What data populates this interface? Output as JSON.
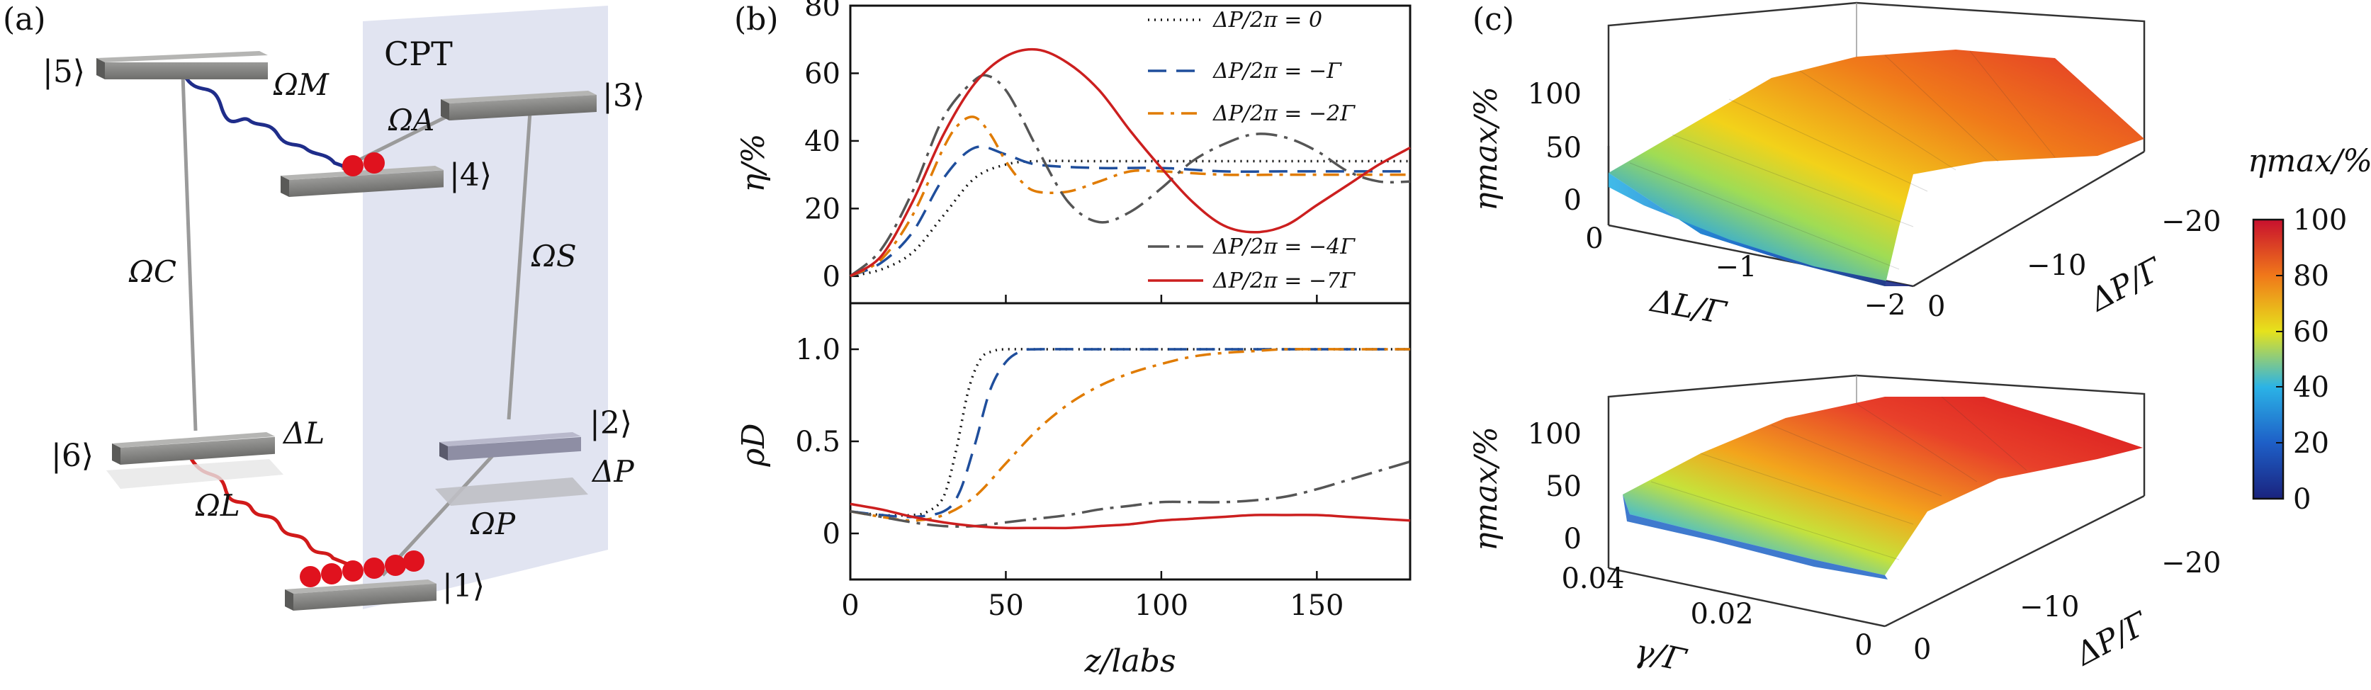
{
  "panels": {
    "a": {
      "label": "(a)",
      "cpt_label": "CPT",
      "levels": [
        "|5⟩",
        "|3⟩",
        "|4⟩",
        "|6⟩",
        "|2⟩",
        "|1⟩"
      ],
      "couplings": {
        "M": "ΩM",
        "A": "ΩA",
        "C": "ΩC",
        "S": "ΩS",
        "L": "ΩL",
        "P": "ΩP",
        "DL": "ΔL",
        "DP": "ΔP"
      },
      "colors": {
        "wave_M": "#1f2d8a",
        "wave_L": "#d11a1a",
        "atoms": "#e0121e",
        "cpt_plane": "#dcdfee"
      }
    },
    "b": {
      "label": "(b)",
      "top_ylabel": "η/%",
      "bottom_ylabel": "ρD",
      "xlabel": "z/labs"
    },
    "c": {
      "label": "(c)",
      "top_zlabel": "ηmax/%",
      "top_xlabel": "ΔL/Γ",
      "top_ylabel": "ΔP/Γ",
      "top_xticks": [
        "0",
        "−1",
        "−2"
      ],
      "top_yticks": [
        "0",
        "−10",
        "−20"
      ],
      "top_zticks": [
        "0",
        "50",
        "100"
      ],
      "bottom_zlabel": "ηmax/%",
      "bottom_xlabel": "γ/Γ",
      "bottom_ylabel": "ΔP/Γ",
      "bottom_xticks": [
        "0.04",
        "0.02",
        "0"
      ],
      "bottom_yticks": [
        "0",
        "−10",
        "−20"
      ],
      "bottom_zticks": [
        "0",
        "50",
        "100"
      ],
      "colorbar_title": "ηmax/%",
      "colorbar_ticks": [
        "100",
        "80",
        "60",
        "40",
        "20",
        "0"
      ]
    }
  },
  "chart_data": [
    {
      "type": "line",
      "panel": "b-top",
      "ylabel": "η/%",
      "xlim": [
        0,
        180
      ],
      "ylim": [
        -8,
        80
      ],
      "yticks": [
        0,
        20,
        40,
        60,
        80
      ],
      "legend_placement": "top-right and bottom-right",
      "series": [
        {
          "name": "ΔP/2π = 0",
          "color": "#111111",
          "dash": "2,7",
          "x": [
            0,
            10,
            20,
            30,
            40,
            50,
            60,
            80,
            100,
            120,
            140,
            160,
            180
          ],
          "y": [
            0,
            2,
            7,
            18,
            29,
            33,
            34,
            34,
            34,
            34,
            34,
            34,
            34
          ]
        },
        {
          "name": "ΔP/2π = −Γ",
          "color": "#1f4e9c",
          "dash": "26,14",
          "x": [
            0,
            10,
            20,
            30,
            40,
            50,
            60,
            80,
            100,
            120,
            140,
            160,
            180
          ],
          "y": [
            0,
            4,
            13,
            29,
            38,
            36,
            33,
            32,
            32,
            31,
            31,
            31,
            31
          ]
        },
        {
          "name": "ΔP/2π = −2Γ",
          "color": "#e07b00",
          "dash": "22,10,5,10",
          "x": [
            0,
            10,
            20,
            30,
            35,
            40,
            45,
            50,
            55,
            60,
            70,
            80,
            90,
            100,
            120,
            140,
            160,
            180
          ],
          "y": [
            0,
            5,
            18,
            38,
            45,
            47,
            42,
            34,
            28,
            25,
            25,
            28,
            31,
            31,
            30,
            30,
            30,
            30
          ]
        },
        {
          "name": "ΔP/2π = −4Γ",
          "color": "#555555",
          "dash": "30,10,5,10",
          "x": [
            0,
            10,
            20,
            30,
            40,
            45,
            50,
            55,
            60,
            70,
            80,
            90,
            100,
            110,
            120,
            130,
            140,
            150,
            160,
            170,
            180
          ],
          "y": [
            0,
            8,
            25,
            47,
            58,
            59,
            55,
            47,
            38,
            22,
            16,
            19,
            26,
            34,
            39,
            42,
            41,
            37,
            31,
            28,
            28
          ]
        },
        {
          "name": "ΔP/2π = −7Γ",
          "color": "#cc1f1f",
          "dash": "",
          "x": [
            0,
            10,
            20,
            30,
            40,
            50,
            60,
            70,
            80,
            90,
            100,
            110,
            120,
            130,
            140,
            150,
            160,
            170,
            180
          ],
          "y": [
            0,
            6,
            22,
            42,
            57,
            65,
            67,
            63,
            55,
            43,
            32,
            22,
            15,
            13,
            15,
            21,
            27,
            33,
            38
          ]
        }
      ]
    },
    {
      "type": "line",
      "panel": "b-bottom",
      "ylabel": "ρD",
      "xlabel": "z/labs",
      "xlim": [
        0,
        180
      ],
      "ylim": [
        -0.25,
        1.25
      ],
      "xticks": [
        0,
        50,
        100,
        150
      ],
      "yticks": [
        0,
        0.5,
        1.0
      ],
      "ytick_labels": [
        "0",
        "0.5",
        "1.0"
      ],
      "series": [
        {
          "name": "ΔP/2π = 0",
          "color": "#111111",
          "dash": "2,7",
          "x": [
            0,
            10,
            20,
            25,
            30,
            34,
            38,
            42,
            46,
            50,
            60,
            80,
            120,
            180
          ],
          "y": [
            0.12,
            0.1,
            0.1,
            0.12,
            0.2,
            0.45,
            0.78,
            0.95,
            0.99,
            1,
            1,
            1,
            1,
            1
          ]
        },
        {
          "name": "ΔP/2π = −Γ",
          "color": "#1f4e9c",
          "dash": "26,14",
          "x": [
            0,
            10,
            20,
            30,
            35,
            40,
            45,
            50,
            55,
            60,
            80,
            120,
            180
          ],
          "y": [
            0.12,
            0.1,
            0.09,
            0.12,
            0.22,
            0.48,
            0.78,
            0.93,
            0.99,
            1,
            1,
            1,
            1
          ]
        },
        {
          "name": "ΔP/2π = −2Γ",
          "color": "#e07b00",
          "dash": "22,10,5,10",
          "x": [
            0,
            10,
            20,
            30,
            40,
            50,
            60,
            70,
            80,
            90,
            100,
            110,
            120,
            130,
            140,
            160,
            180
          ],
          "y": [
            0.12,
            0.09,
            0.07,
            0.1,
            0.2,
            0.38,
            0.56,
            0.7,
            0.8,
            0.87,
            0.92,
            0.96,
            0.98,
            0.99,
            1,
            1,
            1
          ]
        },
        {
          "name": "ΔP/2π = −4Γ",
          "color": "#555555",
          "dash": "30,10,5,10",
          "x": [
            0,
            10,
            20,
            30,
            40,
            50,
            60,
            70,
            80,
            90,
            100,
            110,
            120,
            130,
            140,
            150,
            160,
            170,
            180
          ],
          "y": [
            0.12,
            0.09,
            0.06,
            0.04,
            0.04,
            0.06,
            0.08,
            0.1,
            0.13,
            0.15,
            0.17,
            0.17,
            0.17,
            0.18,
            0.2,
            0.24,
            0.29,
            0.34,
            0.39
          ]
        },
        {
          "name": "ΔP/2π = −7Γ",
          "color": "#cc1f1f",
          "dash": "",
          "x": [
            0,
            10,
            20,
            30,
            40,
            50,
            60,
            70,
            80,
            90,
            100,
            110,
            120,
            130,
            140,
            150,
            160,
            170,
            180
          ],
          "y": [
            0.16,
            0.13,
            0.09,
            0.06,
            0.04,
            0.03,
            0.03,
            0.03,
            0.04,
            0.05,
            0.07,
            0.08,
            0.09,
            0.1,
            0.1,
            0.1,
            0.09,
            0.08,
            0.07
          ]
        }
      ]
    },
    {
      "type": "heatmap",
      "panel": "c-top",
      "note": "3D surface of η_max over ΔL/Γ and ΔP/Γ",
      "xlabel": "ΔL/Γ",
      "ylabel": "ΔP/Γ",
      "zlabel": "ηmax/%",
      "xlim": [
        0,
        -2
      ],
      "ylim": [
        0,
        -20
      ],
      "zlim": [
        0,
        100
      ],
      "colorbar_range": [
        0,
        100
      ]
    },
    {
      "type": "heatmap",
      "panel": "c-bottom",
      "note": "3D surface of η_max over γ/Γ and ΔP/Γ",
      "xlabel": "γ/Γ",
      "ylabel": "ΔP/Γ",
      "zlabel": "ηmax/%",
      "xlim": [
        0.04,
        0
      ],
      "ylim": [
        0,
        -20
      ],
      "zlim": [
        0,
        100
      ],
      "colorbar_range": [
        0,
        100
      ]
    }
  ]
}
